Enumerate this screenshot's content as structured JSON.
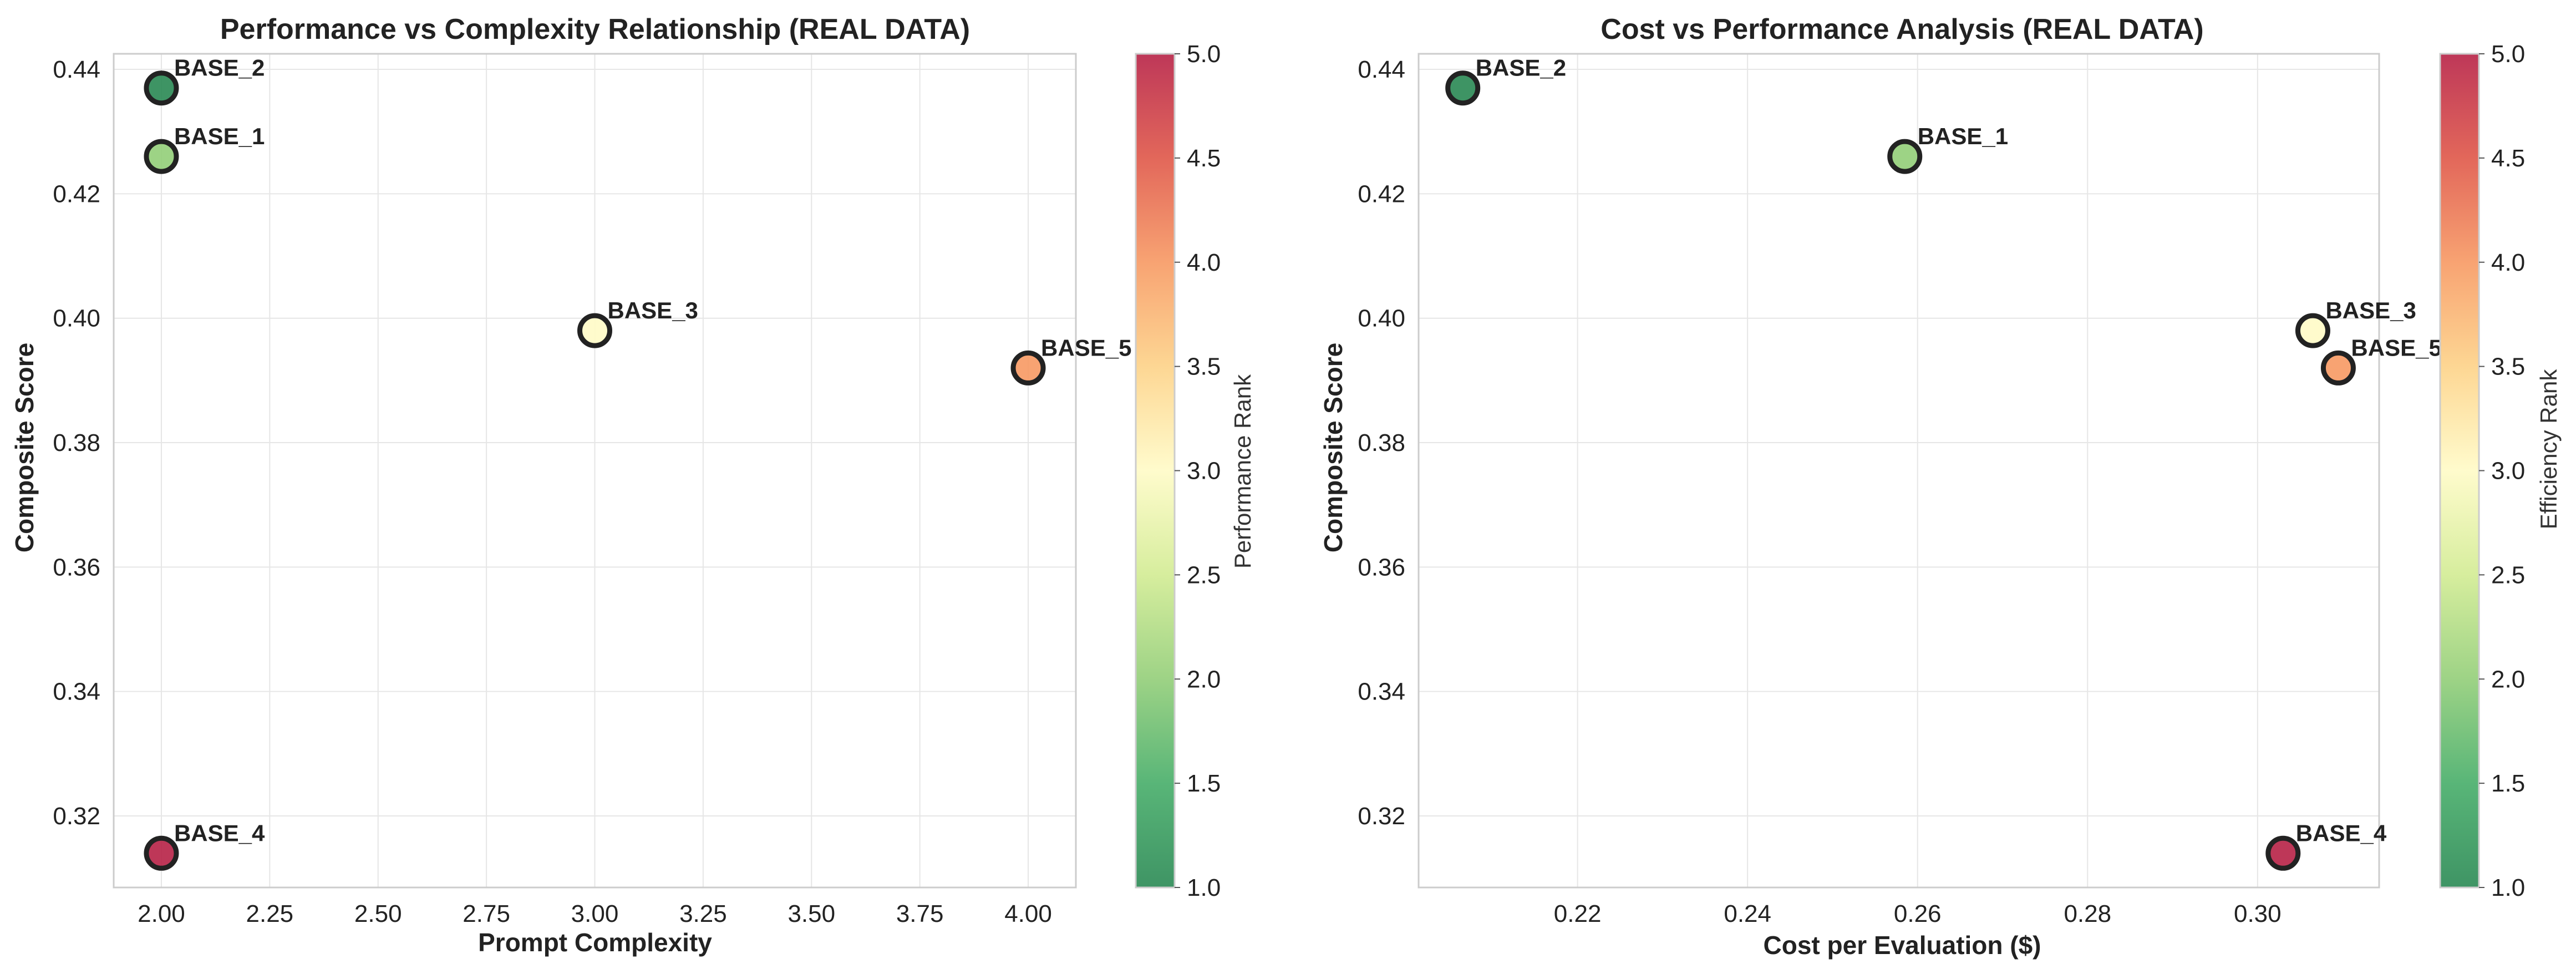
{
  "colors": {
    "colormap": [
      "#2e8b57",
      "#4aaf6c",
      "#95cf7b",
      "#d3ec95",
      "#fffbc8",
      "#fdd38a",
      "#f79b66",
      "#e05a4c",
      "#b8264a"
    ],
    "point_edge": "#222222",
    "grid": "#e6e6e6",
    "frame": "#cccccc"
  },
  "chart_data": [
    {
      "type": "scatter",
      "title": "Performance vs Complexity Relationship (REAL DATA)",
      "xlabel": "Prompt Complexity",
      "ylabel": "Composite Score",
      "xlim": [
        1.89,
        4.11
      ],
      "ylim": [
        0.3085,
        0.4425
      ],
      "xticks": [
        2.0,
        2.25,
        2.5,
        2.75,
        3.0,
        3.25,
        3.5,
        3.75,
        4.0
      ],
      "xtick_labels": [
        "2.00",
        "2.25",
        "2.50",
        "2.75",
        "3.00",
        "3.25",
        "3.50",
        "3.75",
        "4.00"
      ],
      "yticks": [
        0.32,
        0.34,
        0.36,
        0.38,
        0.4,
        0.42,
        0.44
      ],
      "ytick_labels": [
        "0.32",
        "0.34",
        "0.36",
        "0.38",
        "0.40",
        "0.42",
        "0.44"
      ],
      "grid": true,
      "colorbar": {
        "label": "Performance Rank",
        "range": [
          1.0,
          5.0
        ],
        "ticks": [
          1.0,
          1.5,
          2.0,
          2.5,
          3.0,
          3.5,
          4.0,
          4.5,
          5.0
        ],
        "tick_labels": [
          "1.0",
          "1.5",
          "2.0",
          "2.5",
          "3.0",
          "3.5",
          "4.0",
          "4.5",
          "5.0"
        ]
      },
      "points": [
        {
          "label": "BASE_2",
          "x": 2.0,
          "y": 0.437,
          "rank": 1
        },
        {
          "label": "BASE_1",
          "x": 2.0,
          "y": 0.426,
          "rank": 2
        },
        {
          "label": "BASE_3",
          "x": 3.0,
          "y": 0.398,
          "rank": 3
        },
        {
          "label": "BASE_5",
          "x": 4.0,
          "y": 0.392,
          "rank": 4
        },
        {
          "label": "BASE_4",
          "x": 2.0,
          "y": 0.314,
          "rank": 5
        }
      ]
    },
    {
      "type": "scatter",
      "title": "Cost vs Performance Analysis (REAL DATA)",
      "xlabel": "Cost per Evaluation ($)",
      "ylabel": "Composite Score",
      "xlim": [
        0.2013,
        0.3143
      ],
      "ylim": [
        0.3085,
        0.4425
      ],
      "xticks": [
        0.22,
        0.24,
        0.26,
        0.28,
        0.3
      ],
      "xtick_labels": [
        "0.22",
        "0.24",
        "0.26",
        "0.28",
        "0.30"
      ],
      "yticks": [
        0.32,
        0.34,
        0.36,
        0.38,
        0.4,
        0.42,
        0.44
      ],
      "ytick_labels": [
        "0.32",
        "0.34",
        "0.36",
        "0.38",
        "0.40",
        "0.42",
        "0.44"
      ],
      "grid": true,
      "colorbar": {
        "label": "Efficiency Rank",
        "range": [
          1.0,
          5.0
        ],
        "ticks": [
          1.0,
          1.5,
          2.0,
          2.5,
          3.0,
          3.5,
          4.0,
          4.5,
          5.0
        ],
        "tick_labels": [
          "1.0",
          "1.5",
          "2.0",
          "2.5",
          "3.0",
          "3.5",
          "4.0",
          "4.5",
          "5.0"
        ]
      },
      "points": [
        {
          "label": "BASE_2",
          "x": 0.2065,
          "y": 0.437,
          "rank": 1
        },
        {
          "label": "BASE_1",
          "x": 0.2585,
          "y": 0.426,
          "rank": 2
        },
        {
          "label": "BASE_3",
          "x": 0.3065,
          "y": 0.398,
          "rank": 3
        },
        {
          "label": "BASE_5",
          "x": 0.3095,
          "y": 0.392,
          "rank": 4
        },
        {
          "label": "BASE_4",
          "x": 0.303,
          "y": 0.314,
          "rank": 5
        }
      ]
    }
  ]
}
